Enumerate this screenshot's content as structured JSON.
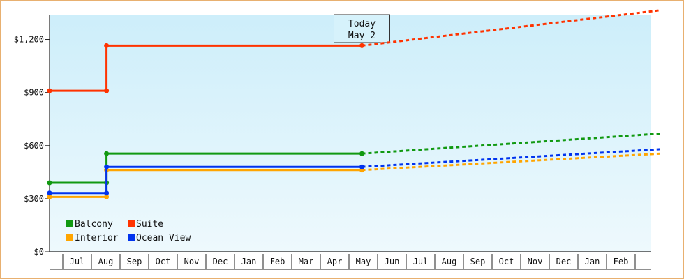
{
  "chart_data": {
    "type": "line",
    "title": "",
    "xlabel": "",
    "ylabel": "",
    "y_ticks": [
      "$0",
      "$300",
      "$600",
      "$900",
      "$1,200"
    ],
    "y_tick_values": [
      0,
      300,
      600,
      900,
      1200
    ],
    "ylim": [
      0,
      1340
    ],
    "x_months": [
      "Jul",
      "Aug",
      "Sep",
      "Oct",
      "Nov",
      "Dec",
      "Jan",
      "Feb",
      "Mar",
      "Apr",
      "May",
      "Jun",
      "Jul",
      "Aug",
      "Sep",
      "Oct",
      "Nov",
      "Dec",
      "Jan",
      "Feb"
    ],
    "x_range_months": [
      0,
      21
    ],
    "grid": false,
    "today": {
      "line1": "Today",
      "line2": "May 2",
      "x": 10.5
    },
    "series": [
      {
        "name": "Balcony",
        "color": "#119911",
        "history": [
          [
            0,
            390
          ],
          [
            1.6,
            390
          ],
          [
            1.6,
            555
          ],
          [
            10.5,
            555
          ]
        ],
        "projection": [
          [
            10.5,
            555
          ],
          [
            21,
            668
          ]
        ]
      },
      {
        "name": "Suite",
        "color": "#ff3300",
        "history": [
          [
            0,
            910
          ],
          [
            1.6,
            910
          ],
          [
            1.6,
            1165
          ],
          [
            10.5,
            1165
          ]
        ],
        "projection": [
          [
            10.5,
            1165
          ],
          [
            21,
            1365
          ]
        ]
      },
      {
        "name": "Interior",
        "color": "#ffa500",
        "history": [
          [
            0,
            310
          ],
          [
            1.6,
            310
          ],
          [
            1.6,
            462
          ],
          [
            10.5,
            462
          ]
        ],
        "projection": [
          [
            10.5,
            462
          ],
          [
            21,
            555
          ]
        ]
      },
      {
        "name": "Ocean View",
        "color": "#0033ee",
        "history": [
          [
            0,
            332
          ],
          [
            1.6,
            332
          ],
          [
            1.6,
            480
          ],
          [
            10.5,
            480
          ]
        ],
        "projection": [
          [
            10.5,
            480
          ],
          [
            21,
            580
          ]
        ]
      }
    ],
    "legend": {
      "placement": "bottom-left",
      "order": [
        "Balcony",
        "Suite",
        "Interior",
        "Ocean View"
      ]
    }
  }
}
